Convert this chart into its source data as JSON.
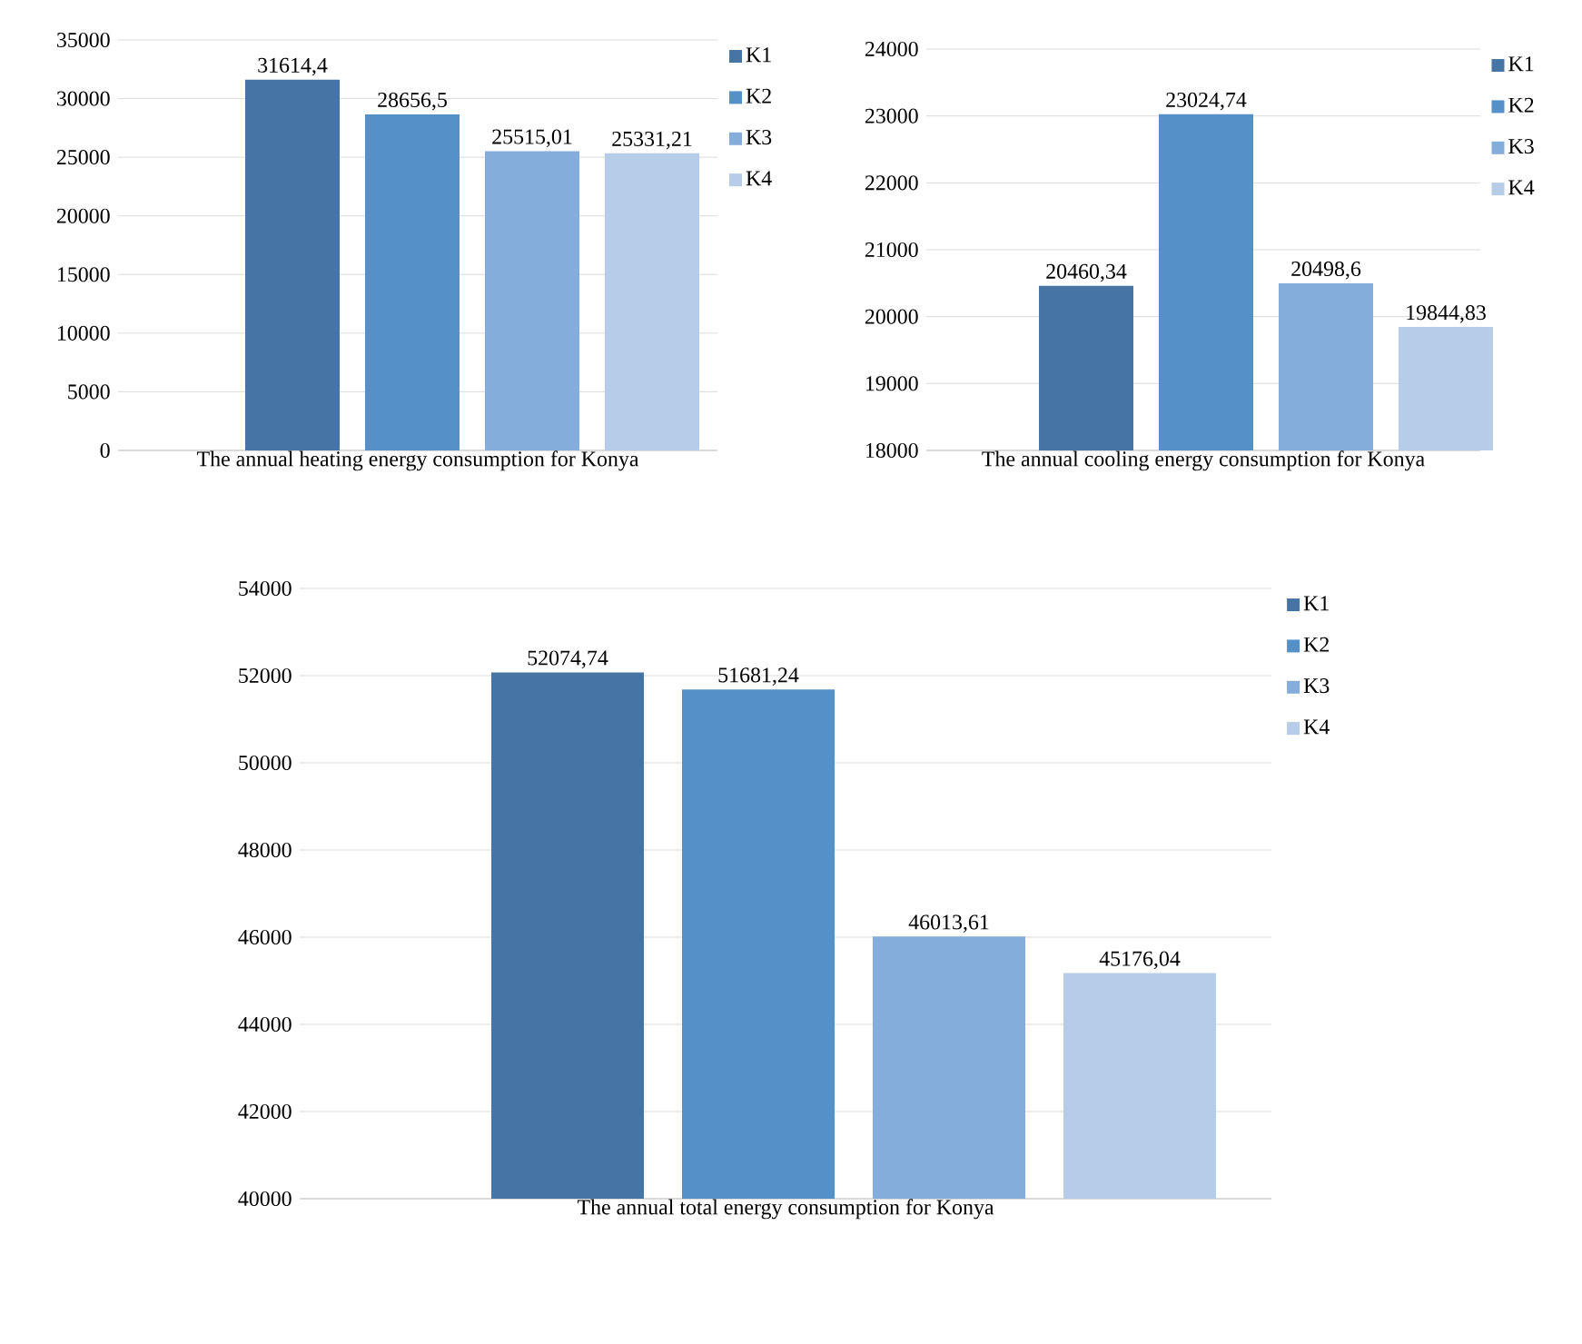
{
  "chart_data": [
    {
      "type": "bar",
      "xlabel": "The annual heating energy consumption for Konya",
      "categories": [
        null
      ],
      "ylim": [
        0,
        35000
      ],
      "yticks": [
        0,
        5000,
        10000,
        15000,
        20000,
        25000,
        30000,
        35000
      ],
      "grid": "y",
      "legend": "right",
      "series": [
        {
          "name": "K1",
          "color": "#4674a5",
          "values": [
            31614.4
          ],
          "value_labels": [
            "31614,4"
          ]
        },
        {
          "name": "K2",
          "color": "#5590c8",
          "values": [
            28656.5
          ],
          "value_labels": [
            "28656,5"
          ]
        },
        {
          "name": "K3",
          "color": "#84addb",
          "values": [
            25515.01
          ],
          "value_labels": [
            "25515,01"
          ]
        },
        {
          "name": "K4",
          "color": "#b6cce8",
          "values": [
            25331.21
          ],
          "value_labels": [
            "25331,21"
          ]
        }
      ]
    },
    {
      "type": "bar",
      "xlabel": "The annual cooling energy consumption for Konya",
      "categories": [
        null
      ],
      "ylim": [
        18000,
        24000
      ],
      "yticks": [
        18000,
        19000,
        20000,
        21000,
        22000,
        23000,
        24000
      ],
      "grid": "y",
      "legend": "right",
      "series": [
        {
          "name": "K1",
          "color": "#4674a5",
          "values": [
            20460.34
          ],
          "value_labels": [
            "20460,34"
          ]
        },
        {
          "name": "K2",
          "color": "#5590c8",
          "values": [
            23024.74
          ],
          "value_labels": [
            "23024,74"
          ]
        },
        {
          "name": "K3",
          "color": "#84addb",
          "values": [
            20498.6
          ],
          "value_labels": [
            "20498,6"
          ]
        },
        {
          "name": "K4",
          "color": "#b6cce8",
          "values": [
            19844.83
          ],
          "value_labels": [
            "19844,83"
          ]
        }
      ]
    },
    {
      "type": "bar",
      "xlabel": "The annual total energy consumption for Konya",
      "categories": [
        null
      ],
      "ylim": [
        40000,
        54000
      ],
      "yticks": [
        40000,
        42000,
        44000,
        46000,
        48000,
        50000,
        52000,
        54000
      ],
      "grid": "y",
      "legend": "right",
      "series": [
        {
          "name": "K1",
          "color": "#4674a5",
          "values": [
            52074.74
          ],
          "value_labels": [
            "52074,74"
          ]
        },
        {
          "name": "K2",
          "color": "#5590c8",
          "values": [
            51681.24
          ],
          "value_labels": [
            "51681,24"
          ]
        },
        {
          "name": "K3",
          "color": "#84addb",
          "values": [
            46013.61
          ],
          "value_labels": [
            "46013,61"
          ]
        },
        {
          "name": "K4",
          "color": "#b6cce8",
          "values": [
            45176.04
          ],
          "value_labels": [
            "45176,04"
          ]
        }
      ]
    }
  ]
}
